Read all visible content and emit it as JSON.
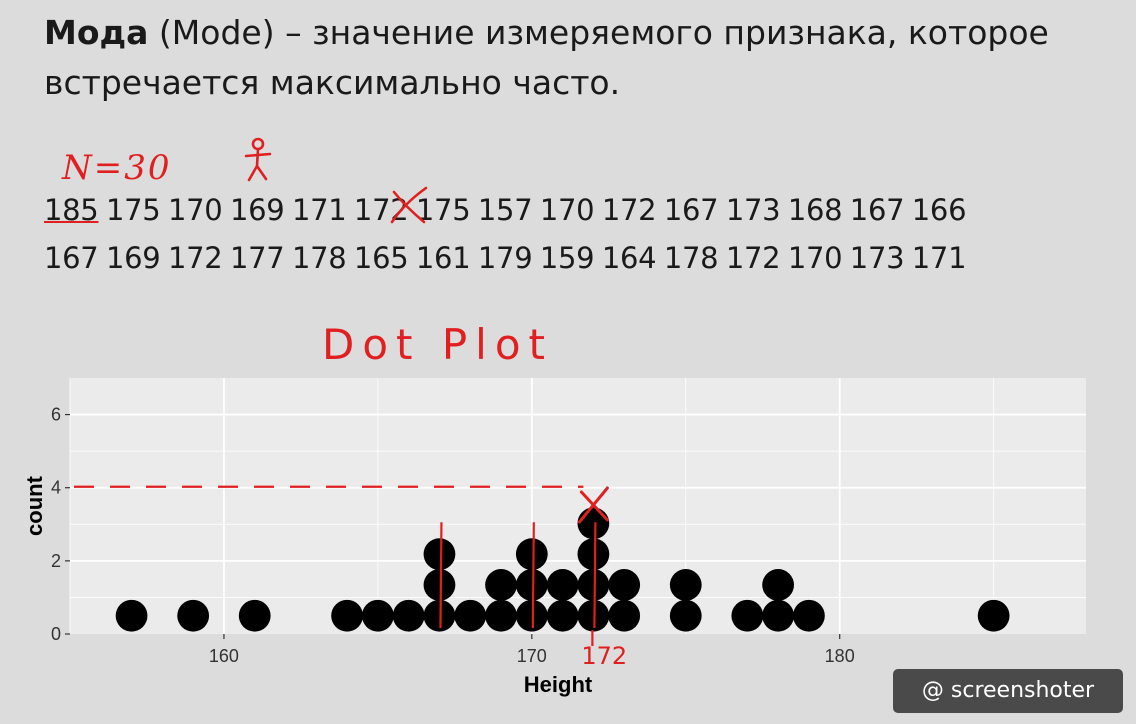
{
  "title": {
    "term": "Мода",
    "rest": " (Mode) – значение измеряемого признака, которое встречается максимально часто."
  },
  "annotations": {
    "n_label": "N=30",
    "plot_title": "Dot Plot",
    "mode_label": "172"
  },
  "data_rows": [
    [
      "185",
      "175",
      "170",
      "169",
      "171",
      "172",
      "175",
      "157",
      "170",
      "172",
      "167",
      "173",
      "168",
      "167",
      "166"
    ],
    [
      "167",
      "169",
      "172",
      "177",
      "178",
      "165",
      "161",
      "179",
      "159",
      "164",
      "178",
      "172",
      "170",
      "173",
      "171"
    ]
  ],
  "watermark": "@ screenshoter",
  "colors": {
    "annotation": "#e02020",
    "dots": "#000000",
    "panel": "#ebebeb",
    "page": "#dcdcdc"
  },
  "chart_data": {
    "type": "scatter",
    "style": "dotplot",
    "xlabel": "Height",
    "ylabel": "count",
    "xlim": [
      155,
      188
    ],
    "ylim": [
      0,
      7
    ],
    "xticks": [
      160,
      170,
      180
    ],
    "yticks": [
      0,
      2,
      4,
      6
    ],
    "grid": true,
    "counts": [
      {
        "x": 157,
        "n": 1
      },
      {
        "x": 159,
        "n": 1
      },
      {
        "x": 161,
        "n": 1
      },
      {
        "x": 164,
        "n": 1
      },
      {
        "x": 165,
        "n": 1
      },
      {
        "x": 166,
        "n": 1
      },
      {
        "x": 167,
        "n": 3
      },
      {
        "x": 168,
        "n": 1
      },
      {
        "x": 169,
        "n": 2
      },
      {
        "x": 170,
        "n": 3
      },
      {
        "x": 171,
        "n": 2
      },
      {
        "x": 172,
        "n": 4
      },
      {
        "x": 173,
        "n": 2
      },
      {
        "x": 175,
        "n": 2
      },
      {
        "x": 177,
        "n": 1
      },
      {
        "x": 178,
        "n": 2
      },
      {
        "x": 179,
        "n": 1
      },
      {
        "x": 185,
        "n": 1
      }
    ]
  }
}
